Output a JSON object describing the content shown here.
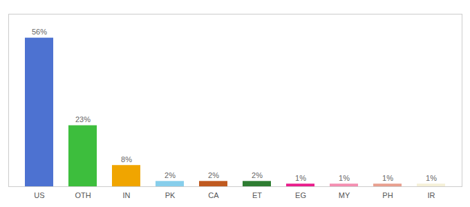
{
  "chart_data": {
    "type": "bar",
    "categories": [
      "US",
      "OTH",
      "IN",
      "PK",
      "CA",
      "ET",
      "EG",
      "MY",
      "PH",
      "IR"
    ],
    "values": [
      56,
      23,
      8,
      2,
      2,
      2,
      1,
      1,
      1,
      1
    ],
    "value_labels": [
      "56%",
      "23%",
      "8%",
      "2%",
      "2%",
      "2%",
      "1%",
      "1%",
      "1%",
      "1%"
    ],
    "colors": [
      "#4d72d1",
      "#3dbe3d",
      "#f0a500",
      "#87ceeb",
      "#c05a20",
      "#2e7d32",
      "#e91e8c",
      "#f48fb1",
      "#e8a090",
      "#f5f0d8"
    ],
    "ylim": [
      0,
      65
    ],
    "data_labels": true,
    "tick_labels": "x"
  }
}
